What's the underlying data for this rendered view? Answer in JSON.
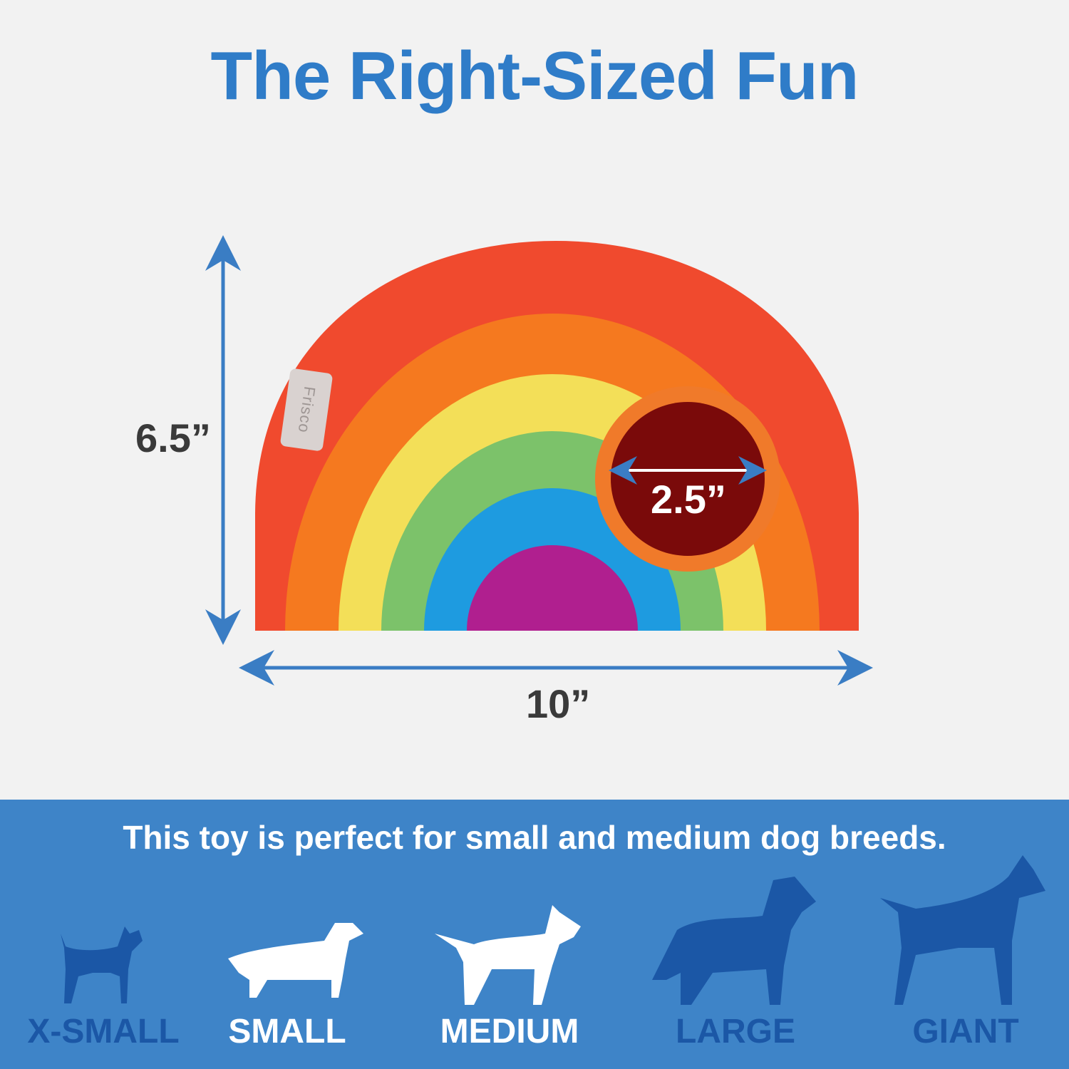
{
  "title": "The Right-Sized Fun",
  "dimensions": {
    "height": "6.5”",
    "width": "10”",
    "opening": "2.5”"
  },
  "tag_text": "Frisco",
  "fit_text": "This toy is perfect for small and medium dog breeds.",
  "colors": {
    "title": "#2f7cc8",
    "band": "#3e84c8",
    "suitable": "#ffffff",
    "not_suitable": "#1b57a6",
    "arrow": "#3a7dc4"
  },
  "sizes": [
    {
      "label": "X-SMALL",
      "suitable": false,
      "icon": "chihuahua-silhouette-icon"
    },
    {
      "label": "SMALL",
      "suitable": true,
      "icon": "dachshund-silhouette-icon"
    },
    {
      "label": "MEDIUM",
      "suitable": true,
      "icon": "bull-terrier-silhouette-icon"
    },
    {
      "label": "LARGE",
      "suitable": false,
      "icon": "retriever-silhouette-icon"
    },
    {
      "label": "GIANT",
      "suitable": false,
      "icon": "great-dane-silhouette-icon"
    }
  ]
}
